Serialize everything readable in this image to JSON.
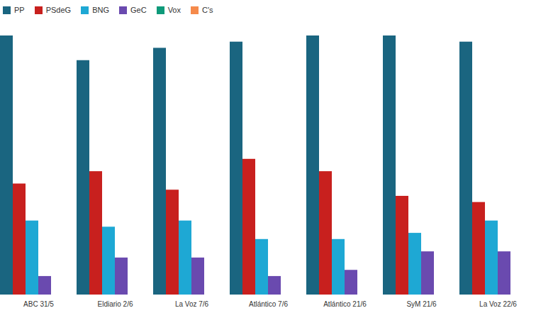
{
  "chart_data": {
    "type": "bar",
    "categories": [
      "ABC 31/5",
      "Eldiario 2/6",
      "La Voz 7/6",
      "Atlántico 7/6",
      "Atlántico 21/6",
      "SyM 21/6",
      "La Voz 22/6"
    ],
    "series": [
      {
        "name": "PP",
        "color": "#1a6580",
        "values": [
          42,
          38,
          40,
          41,
          42,
          42,
          41
        ]
      },
      {
        "name": "PSdeG",
        "color": "#c8201e",
        "values": [
          18,
          20,
          17,
          22,
          20,
          16,
          15
        ]
      },
      {
        "name": "BNG",
        "color": "#1ea8d4",
        "values": [
          12,
          11,
          12,
          9,
          9,
          10,
          12
        ]
      },
      {
        "name": "GeC",
        "color": "#6a4aaf",
        "values": [
          3,
          6,
          6,
          3,
          4,
          7,
          7
        ]
      },
      {
        "name": "Vox",
        "color": "#0e9a7a",
        "values": [
          0,
          0,
          0,
          0,
          0,
          0,
          0
        ]
      },
      {
        "name": "C's",
        "color": "#f58a4b",
        "values": [
          0,
          0,
          0,
          0,
          0,
          0,
          0
        ]
      }
    ],
    "ylim": [
      0,
      42
    ],
    "tick_labels": "x",
    "grid": false,
    "legend": "top-left"
  }
}
